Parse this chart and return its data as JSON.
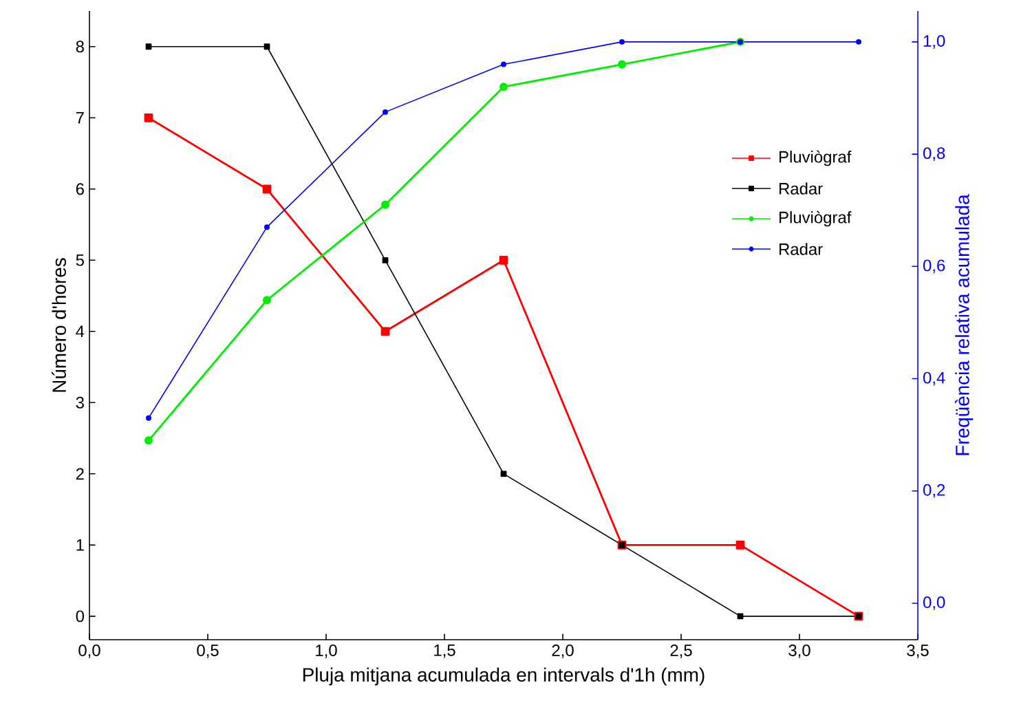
{
  "chart_data": {
    "type": "line",
    "xlabel": "Pluja mitjana acumulada en intervals d'1h (mm)",
    "ylabel": "Número d'hores",
    "y2label": "Freqüència relativa acumulada",
    "x": [
      0.25,
      0.75,
      1.25,
      1.75,
      2.25,
      2.75,
      3.25
    ],
    "series": [
      {
        "name": "Pluviògraf",
        "color": "#ff0000",
        "marker": "square",
        "values": [
          7,
          6,
          4,
          5,
          1,
          1,
          0
        ]
      },
      {
        "name": "Radar",
        "color": "#000000",
        "marker": "square",
        "values": [
          8,
          8,
          5,
          2,
          1,
          0,
          0
        ]
      },
      {
        "name": "Pluviògraf",
        "color": "#00ee00",
        "marker": "circle",
        "axis": "y2",
        "values": [
          0.29,
          0.54,
          0.71,
          0.92,
          0.96,
          1.0,
          null
        ]
      },
      {
        "name": "Radar",
        "color": "#0000ff",
        "marker": "circle",
        "axis": "y2",
        "values": [
          0.33,
          0.67,
          0.875,
          0.96,
          1.0,
          1.0,
          1.0
        ]
      }
    ],
    "xlim": [
      0,
      3.5
    ],
    "xticks": [
      {
        "value": 0,
        "label": "0,0"
      },
      {
        "value": 0.5,
        "label": "0,5"
      },
      {
        "value": 1,
        "label": "1,0"
      },
      {
        "value": 1.5,
        "label": "1,5"
      },
      {
        "value": 2,
        "label": "2,0"
      },
      {
        "value": 2.5,
        "label": "2,5"
      },
      {
        "value": 3,
        "label": "3,0"
      },
      {
        "value": 3.5,
        "label": "3,5"
      }
    ],
    "ylim": [
      -0.33,
      8.5
    ],
    "yticks": [
      0,
      1,
      2,
      3,
      4,
      5,
      6,
      7,
      8
    ],
    "y2lim": [
      -0.065,
      1.055
    ],
    "y2ticks": [
      {
        "value": 0,
        "label": "0,0"
      },
      {
        "value": 0.2,
        "label": "0,2"
      },
      {
        "value": 0.4,
        "label": "0,4"
      },
      {
        "value": 0.6,
        "label": "0,6"
      },
      {
        "value": 0.8,
        "label": "0,8"
      },
      {
        "value": 1.0,
        "label": "1,0"
      }
    ],
    "legend": "top right",
    "grid": false
  }
}
